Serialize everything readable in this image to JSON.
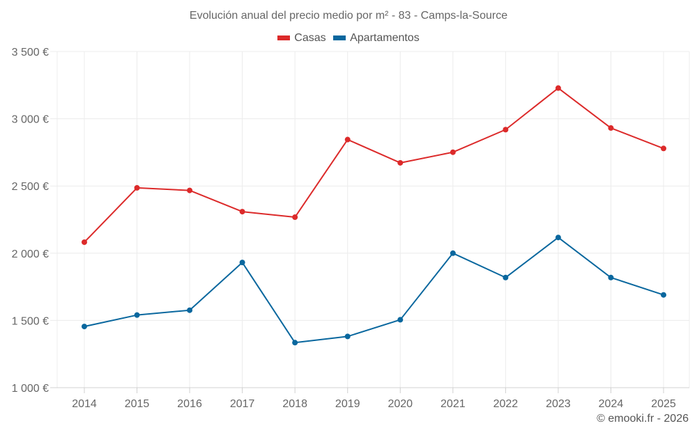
{
  "chart_data": {
    "type": "line",
    "title": "Evolución anual del precio medio por m² - 83 - Camps-la-Source",
    "xlabel": "",
    "ylabel": "",
    "x": [
      "2014",
      "2015",
      "2016",
      "2017",
      "2018",
      "2019",
      "2020",
      "2021",
      "2022",
      "2023",
      "2024",
      "2025"
    ],
    "ylim": [
      1000,
      3500
    ],
    "yticks": [
      1000,
      1500,
      2000,
      2500,
      3000,
      3500
    ],
    "ytick_labels": [
      "1 000 €",
      "1 500 €",
      "2 000 €",
      "2 500 €",
      "3 000 €",
      "3 500 €"
    ],
    "grid": true,
    "legend_position": "top-center",
    "series": [
      {
        "name": "Casas",
        "color": "#dc2a2a",
        "values": [
          2082,
          2486,
          2467,
          2309,
          2268,
          2845,
          2672,
          2751,
          2919,
          3228,
          2931,
          2779
        ]
      },
      {
        "name": "Apartamentos",
        "color": "#09679e",
        "values": [
          1455,
          1540,
          1576,
          1931,
          1335,
          1381,
          1505,
          2000,
          1819,
          2117,
          1819,
          1690
        ]
      }
    ]
  },
  "credit": "© emooki.fr - 2026"
}
